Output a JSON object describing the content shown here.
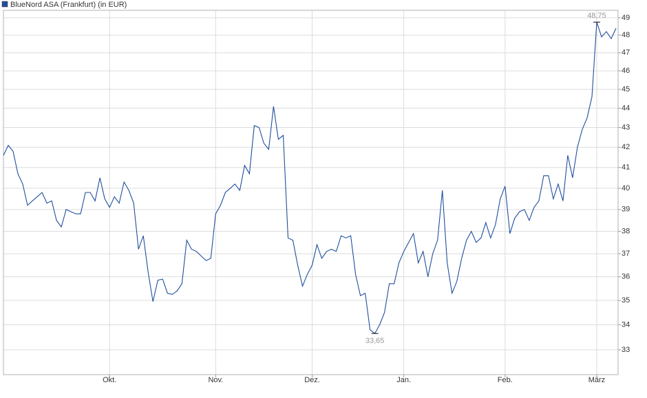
{
  "chart_data": {
    "type": "line",
    "yscale": "log",
    "grid": true,
    "categories": [
      null,
      null,
      null,
      null,
      null,
      null,
      null,
      null,
      null,
      null,
      null,
      null,
      null,
      null,
      null,
      null,
      null,
      null,
      null,
      null,
      null,
      null,
      "Okt.",
      null,
      null,
      null,
      null,
      null,
      null,
      null,
      null,
      null,
      null,
      null,
      null,
      null,
      null,
      null,
      null,
      null,
      null,
      null,
      null,
      null,
      "Nov.",
      null,
      null,
      null,
      null,
      null,
      null,
      null,
      null,
      null,
      null,
      null,
      null,
      null,
      null,
      null,
      null,
      null,
      null,
      null,
      "Dez.",
      null,
      null,
      null,
      null,
      null,
      null,
      null,
      null,
      null,
      null,
      null,
      null,
      null,
      null,
      null,
      null,
      null,
      null,
      "Jan.",
      null,
      null,
      null,
      null,
      null,
      null,
      null,
      null,
      null,
      null,
      null,
      null,
      null,
      null,
      null,
      null,
      null,
      null,
      null,
      null,
      "Feb.",
      null,
      null,
      null,
      null,
      null,
      null,
      null,
      null,
      null,
      null,
      null,
      null,
      null,
      null,
      null,
      null,
      null,
      null,
      "März",
      null,
      null,
      null,
      null
    ],
    "series": [
      {
        "name": "BlueNord ASA (Frankfurt) (in EUR)",
        "color": "#1f4e9c",
        "values": [
          41.6,
          42.1,
          41.8,
          40.7,
          40.2,
          39.2,
          39.4,
          39.6,
          39.8,
          39.3,
          39.4,
          38.5,
          38.2,
          39.0,
          38.9,
          38.8,
          38.8,
          39.8,
          39.8,
          39.4,
          40.5,
          39.5,
          39.1,
          39.6,
          39.3,
          40.3,
          39.9,
          39.3,
          37.2,
          37.8,
          36.2,
          34.95,
          35.85,
          35.9,
          35.3,
          35.25,
          35.4,
          35.7,
          37.6,
          37.2,
          37.1,
          36.9,
          36.7,
          36.8,
          38.8,
          39.2,
          39.8,
          40.0,
          40.2,
          39.9,
          41.1,
          40.7,
          43.1,
          43.0,
          42.2,
          41.9,
          44.1,
          42.4,
          42.6,
          37.7,
          37.6,
          36.5,
          35.6,
          36.1,
          36.5,
          37.4,
          36.8,
          37.1,
          37.2,
          37.1,
          37.8,
          37.7,
          37.8,
          36.1,
          35.2,
          35.3,
          33.8,
          33.65,
          34.0,
          34.5,
          35.7,
          35.7,
          36.6,
          37.1,
          37.5,
          37.9,
          36.6,
          37.1,
          36.0,
          37.0,
          37.6,
          39.9,
          36.6,
          35.3,
          35.8,
          36.8,
          37.6,
          38.0,
          37.5,
          37.7,
          38.4,
          37.7,
          38.3,
          39.5,
          40.1,
          37.9,
          38.6,
          38.9,
          39.0,
          38.5,
          39.1,
          39.4,
          40.6,
          40.6,
          39.5,
          40.2,
          39.4,
          41.6,
          40.5,
          42.0,
          42.9,
          43.5,
          44.6,
          48.75,
          47.9,
          48.2,
          47.8,
          48.4
        ],
        "value_labels": [
          null,
          null,
          null,
          null,
          null,
          null,
          null,
          null,
          null,
          null,
          null,
          null,
          null,
          null,
          null,
          null,
          null,
          null,
          null,
          null,
          null,
          null,
          null,
          null,
          null,
          null,
          null,
          null,
          null,
          null,
          null,
          null,
          null,
          null,
          null,
          null,
          null,
          null,
          null,
          null,
          null,
          null,
          null,
          null,
          null,
          null,
          null,
          null,
          null,
          null,
          null,
          null,
          null,
          null,
          null,
          null,
          null,
          null,
          null,
          null,
          null,
          null,
          null,
          null,
          null,
          null,
          null,
          null,
          null,
          null,
          null,
          null,
          null,
          null,
          null,
          null,
          null,
          "33,65",
          null,
          null,
          null,
          null,
          null,
          null,
          null,
          null,
          null,
          null,
          null,
          null,
          null,
          null,
          null,
          null,
          null,
          null,
          null,
          null,
          null,
          null,
          null,
          null,
          null,
          null,
          null,
          null,
          null,
          null,
          null,
          null,
          null,
          null,
          null,
          null,
          null,
          null,
          null,
          null,
          null,
          null,
          null,
          null,
          null,
          "48,75",
          null,
          null,
          null,
          null
        ]
      }
    ],
    "ylim": [
      32.04,
      49.44
    ],
    "yticks": [
      33,
      34,
      35,
      36,
      37,
      38,
      39,
      40,
      41,
      42,
      43,
      44,
      45,
      46,
      47,
      48,
      49
    ]
  }
}
